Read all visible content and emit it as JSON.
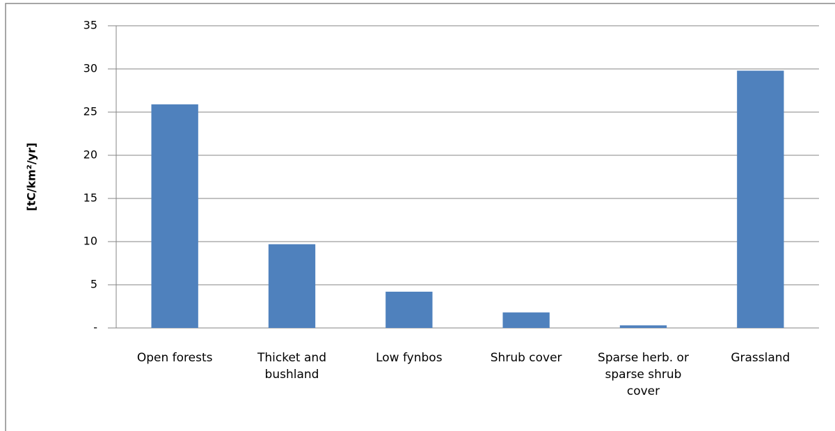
{
  "chart_data": {
    "type": "bar",
    "y_label": "[tC/km²/yr]",
    "categories": [
      "Open forests",
      "Thicket and bushland",
      "Low fynbos",
      "Shrub cover",
      "Sparse herb. or sparse shrub cover",
      "Grassland"
    ],
    "values": [
      25.9,
      9.7,
      4.2,
      1.8,
      0.3,
      29.8
    ],
    "color": "#4f81bd",
    "ylim": [
      0,
      35
    ],
    "yticks": [
      {
        "value": 0,
        "label": "-"
      },
      5,
      10,
      15,
      20,
      25,
      30,
      35
    ],
    "grid": true
  }
}
